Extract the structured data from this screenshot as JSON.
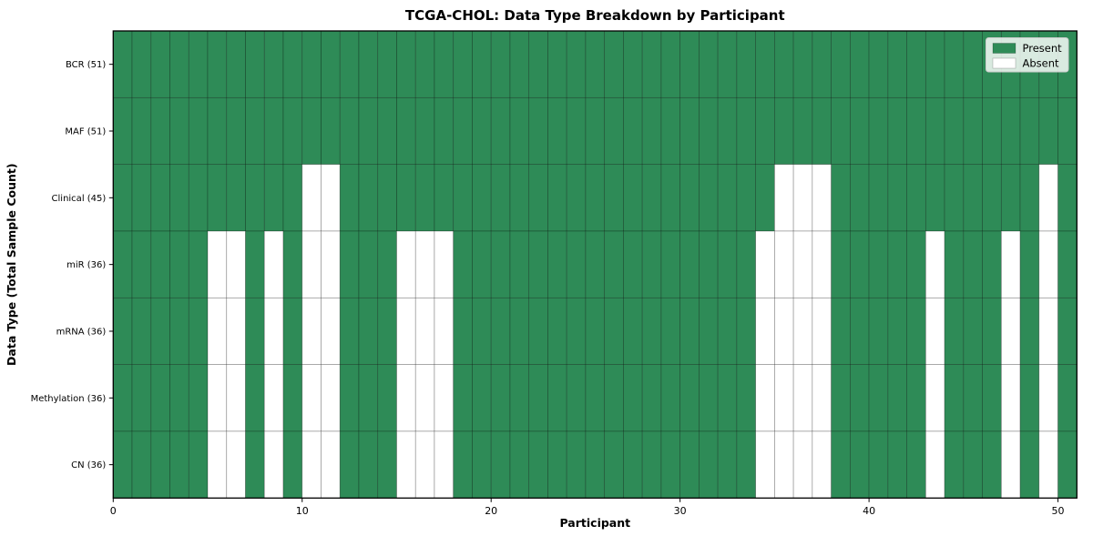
{
  "chart_data": {
    "type": "heatmap",
    "title": "TCGA-CHOL: Data Type Breakdown by Participant",
    "xlabel": "Participant",
    "ylabel": "Data Type (Total Sample Count)",
    "n_participants": 51,
    "x_ticks": [
      0,
      10,
      20,
      30,
      40,
      50
    ],
    "legend": [
      {
        "label": "Present",
        "state": "present"
      },
      {
        "label": "Absent",
        "state": "absent"
      }
    ],
    "legend_position": "upper right",
    "grid": "cell-borders",
    "colors": {
      "present": "#2e8b57",
      "absent": "#ffffff",
      "cell_edge": "rgba(0,0,0,0.35)",
      "plot_border": "#000000",
      "legend_border": "#cccccc",
      "legend_background": "rgba(255,255,255,0.82)"
    },
    "rows": [
      {
        "label": "BCR (51)",
        "total": 51,
        "absent": []
      },
      {
        "label": "MAF (51)",
        "total": 51,
        "absent": []
      },
      {
        "label": "Clinical (45)",
        "total": 45,
        "absent": [
          10,
          11,
          35,
          36,
          37,
          49
        ]
      },
      {
        "label": "miR (36)",
        "total": 36,
        "absent": [
          5,
          6,
          8,
          10,
          11,
          15,
          16,
          17,
          34,
          35,
          36,
          37,
          43,
          47,
          49
        ]
      },
      {
        "label": "mRNA (36)",
        "total": 36,
        "absent": [
          5,
          6,
          8,
          10,
          11,
          15,
          16,
          17,
          34,
          35,
          36,
          37,
          43,
          47,
          49
        ]
      },
      {
        "label": "Methylation (36)",
        "total": 36,
        "absent": [
          5,
          6,
          8,
          10,
          11,
          15,
          16,
          17,
          34,
          35,
          36,
          37,
          43,
          47,
          49
        ]
      },
      {
        "label": "CN (36)",
        "total": 36,
        "absent": [
          5,
          6,
          8,
          10,
          11,
          15,
          16,
          17,
          34,
          35,
          36,
          37,
          43,
          47,
          49
        ]
      }
    ]
  }
}
